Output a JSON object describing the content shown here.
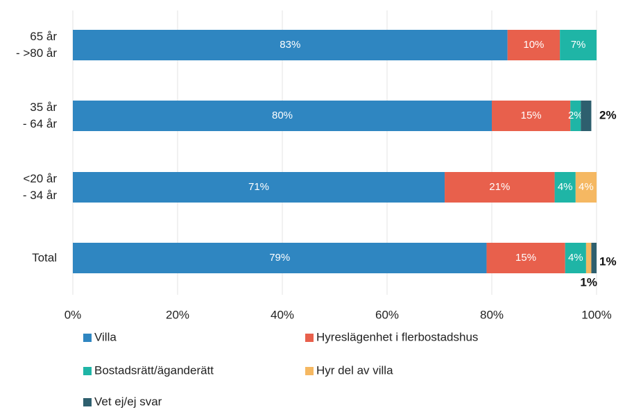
{
  "chart_data": {
    "type": "stacked-bar-horizontal",
    "categories": [
      "65 år\n- >80 år",
      "35 år\n- 64 år",
      "<20 år\n- 34 år",
      "Total"
    ],
    "series": [
      {
        "name": "Villa",
        "color": "#2f86c1",
        "values": [
          83,
          80,
          71,
          79
        ],
        "value_labels": [
          "83%",
          "80%",
          "71%",
          "79%"
        ]
      },
      {
        "name": "Hyreslägenhet i flerbostadshus",
        "color": "#e8604c",
        "values": [
          10,
          15,
          21,
          15
        ],
        "value_labels": [
          "10%",
          "15%",
          "21%",
          "15%"
        ]
      },
      {
        "name": "Bostadsrätt/äganderätt",
        "color": "#1fb5a6",
        "values": [
          7,
          2,
          4,
          4
        ],
        "value_labels": [
          "7%",
          "2%",
          "4%",
          "4%"
        ]
      },
      {
        "name": "Hyr del av villa",
        "color": "#f5b862",
        "values": [
          null,
          null,
          4,
          1
        ],
        "value_labels": [
          null,
          null,
          "4%",
          "1%"
        ]
      },
      {
        "name": "Vet ej/ej svar",
        "color": "#2e5f6e",
        "values": [
          null,
          2,
          null,
          1
        ],
        "value_labels": [
          null,
          "2%",
          null,
          "1%"
        ]
      }
    ],
    "xlim": [
      0,
      100
    ],
    "xticks": [
      {
        "value": 0,
        "label": "0%"
      },
      {
        "value": 20,
        "label": "20%"
      },
      {
        "value": 40,
        "label": "40%"
      },
      {
        "value": 60,
        "label": "60%"
      },
      {
        "value": 80,
        "label": "80%"
      },
      {
        "value": 100,
        "label": "100%"
      }
    ],
    "grid": true,
    "legend": "bottom"
  }
}
